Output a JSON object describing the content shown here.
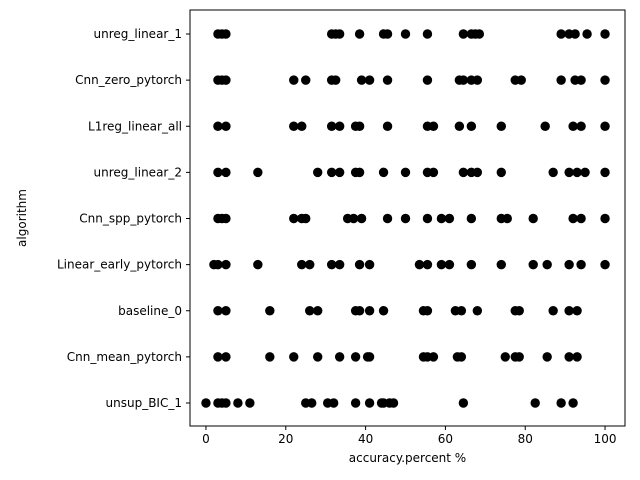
{
  "chart_data": {
    "type": "scatter",
    "title": "",
    "xlabel": "accuracy.percent %",
    "ylabel": "algorithm",
    "xlim": [
      -4,
      105
    ],
    "xticks": [
      0,
      20,
      40,
      60,
      80,
      100
    ],
    "grid": false,
    "legend": "none",
    "marker_color": "#000000",
    "categories": [
      "unreg_linear_1",
      "Cnn_zero_pytorch",
      "L1reg_linear_all",
      "unreg_linear_2",
      "Cnn_spp_pytorch",
      "Linear_early_pytorch",
      "baseline_0",
      "Cnn_mean_pytorch",
      "unsup_BIC_1"
    ],
    "series": [
      {
        "category": "unreg_linear_1",
        "x": [
          3,
          4,
          5,
          31.5,
          32.5,
          33.5,
          38.5,
          44.5,
          45.5,
          50,
          55.5,
          64.5,
          66.5,
          67.5,
          68.5,
          89,
          91,
          92.5,
          95.5,
          100
        ]
      },
      {
        "category": "Cnn_zero_pytorch",
        "x": [
          3,
          4,
          5,
          22,
          25,
          31.5,
          32.5,
          39,
          41,
          45.5,
          55.5,
          63.5,
          64.5,
          66.5,
          68,
          77.5,
          79,
          89,
          92.5,
          94,
          100
        ]
      },
      {
        "category": "L1reg_linear_all",
        "x": [
          3,
          5,
          22,
          24,
          31.5,
          33.5,
          37.5,
          38.5,
          45.5,
          55.5,
          57,
          63.5,
          66.5,
          74,
          85,
          92,
          94,
          100
        ]
      },
      {
        "category": "unreg_linear_2",
        "x": [
          3,
          5,
          13,
          28,
          31.5,
          33.5,
          37.5,
          38.5,
          44.5,
          50,
          55.5,
          57,
          64.5,
          66.5,
          68,
          74,
          87,
          91,
          93,
          95,
          100
        ]
      },
      {
        "category": "Cnn_spp_pytorch",
        "x": [
          3,
          4,
          5,
          22,
          24,
          25,
          35.5,
          37,
          39,
          45.5,
          50,
          55.5,
          59,
          61,
          66.5,
          74,
          75.5,
          82,
          92,
          94,
          100
        ]
      },
      {
        "category": "Linear_early_pytorch",
        "x": [
          2,
          3,
          5,
          13,
          24,
          26,
          31.5,
          33.5,
          38.5,
          41,
          53.5,
          55.5,
          59,
          61,
          66.5,
          74,
          82,
          85.5,
          91,
          94,
          100
        ]
      },
      {
        "category": "baseline_0",
        "x": [
          3,
          5,
          16,
          26,
          28,
          37.5,
          38.5,
          41,
          44.5,
          54.5,
          55.5,
          62.5,
          64,
          68,
          77.5,
          78.5,
          87,
          91,
          93
        ]
      },
      {
        "category": "Cnn_mean_pytorch",
        "x": [
          3,
          5,
          16,
          22,
          28,
          33.5,
          37.5,
          40.5,
          41,
          54.5,
          55.5,
          57,
          63,
          64,
          75,
          77.5,
          78.5,
          85.5,
          91,
          93
        ]
      },
      {
        "category": "unsup_BIC_1",
        "x": [
          0,
          3,
          4,
          5,
          8,
          11,
          25,
          26.5,
          30.5,
          32,
          37.5,
          41,
          44,
          44.5,
          46,
          47,
          64.5,
          82.5,
          89,
          92
        ]
      }
    ]
  }
}
